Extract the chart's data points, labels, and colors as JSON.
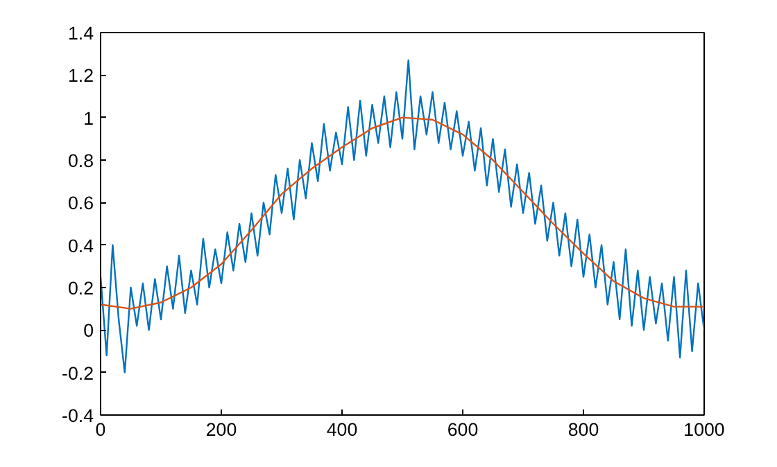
{
  "chart_data": {
    "type": "line",
    "xlim": [
      0,
      1000
    ],
    "ylim": [
      -0.4,
      1.4
    ],
    "xticks": [
      0,
      200,
      400,
      600,
      800,
      1000
    ],
    "yticks": [
      -0.4,
      -0.2,
      0,
      0.2,
      0.4,
      0.6,
      0.8,
      1,
      1.2,
      1.4
    ],
    "grid": false,
    "marker": "none",
    "line_style": "solid",
    "series": [
      {
        "color": "#0072bd",
        "x": [
          0,
          10,
          20,
          30,
          40,
          50,
          60,
          70,
          80,
          90,
          100,
          110,
          120,
          130,
          140,
          150,
          160,
          170,
          180,
          190,
          200,
          210,
          220,
          230,
          240,
          250,
          260,
          270,
          280,
          290,
          300,
          310,
          320,
          330,
          340,
          350,
          360,
          370,
          380,
          390,
          400,
          410,
          420,
          430,
          440,
          450,
          460,
          470,
          480,
          490,
          500,
          510,
          520,
          530,
          540,
          550,
          560,
          570,
          580,
          590,
          600,
          610,
          620,
          630,
          640,
          650,
          660,
          670,
          680,
          690,
          700,
          710,
          720,
          730,
          740,
          750,
          760,
          770,
          780,
          790,
          800,
          810,
          820,
          830,
          840,
          850,
          860,
          870,
          880,
          890,
          900,
          910,
          920,
          930,
          940,
          950,
          960,
          970,
          980,
          990,
          1000
        ],
        "values": [
          0.25,
          -0.12,
          0.4,
          0.05,
          -0.2,
          0.2,
          0.02,
          0.22,
          0.0,
          0.24,
          0.05,
          0.3,
          0.1,
          0.35,
          0.08,
          0.28,
          0.12,
          0.43,
          0.2,
          0.38,
          0.22,
          0.46,
          0.28,
          0.5,
          0.32,
          0.55,
          0.35,
          0.6,
          0.45,
          0.73,
          0.55,
          0.76,
          0.52,
          0.8,
          0.62,
          0.88,
          0.7,
          0.97,
          0.75,
          0.93,
          0.78,
          1.05,
          0.8,
          1.08,
          0.82,
          1.06,
          0.88,
          1.1,
          0.86,
          1.12,
          0.9,
          1.27,
          0.85,
          1.1,
          0.92,
          1.12,
          0.88,
          1.07,
          0.85,
          1.03,
          0.82,
          0.98,
          0.75,
          0.95,
          0.68,
          0.9,
          0.65,
          0.85,
          0.58,
          0.78,
          0.55,
          0.74,
          0.5,
          0.68,
          0.42,
          0.6,
          0.35,
          0.55,
          0.3,
          0.52,
          0.25,
          0.45,
          0.2,
          0.4,
          0.12,
          0.32,
          0.05,
          0.38,
          0.02,
          0.28,
          0.0,
          0.25,
          0.03,
          0.22,
          -0.05,
          0.25,
          -0.13,
          0.28,
          -0.1,
          0.22,
          0.0
        ]
      },
      {
        "color": "#d95319",
        "x": [
          0,
          50,
          100,
          150,
          200,
          250,
          300,
          350,
          400,
          450,
          500,
          550,
          600,
          650,
          700,
          750,
          800,
          850,
          900,
          950,
          1000
        ],
        "values": [
          0.12,
          0.1,
          0.13,
          0.2,
          0.31,
          0.47,
          0.64,
          0.76,
          0.86,
          0.95,
          1.0,
          0.99,
          0.92,
          0.8,
          0.65,
          0.5,
          0.36,
          0.23,
          0.15,
          0.11,
          0.11
        ]
      }
    ]
  }
}
